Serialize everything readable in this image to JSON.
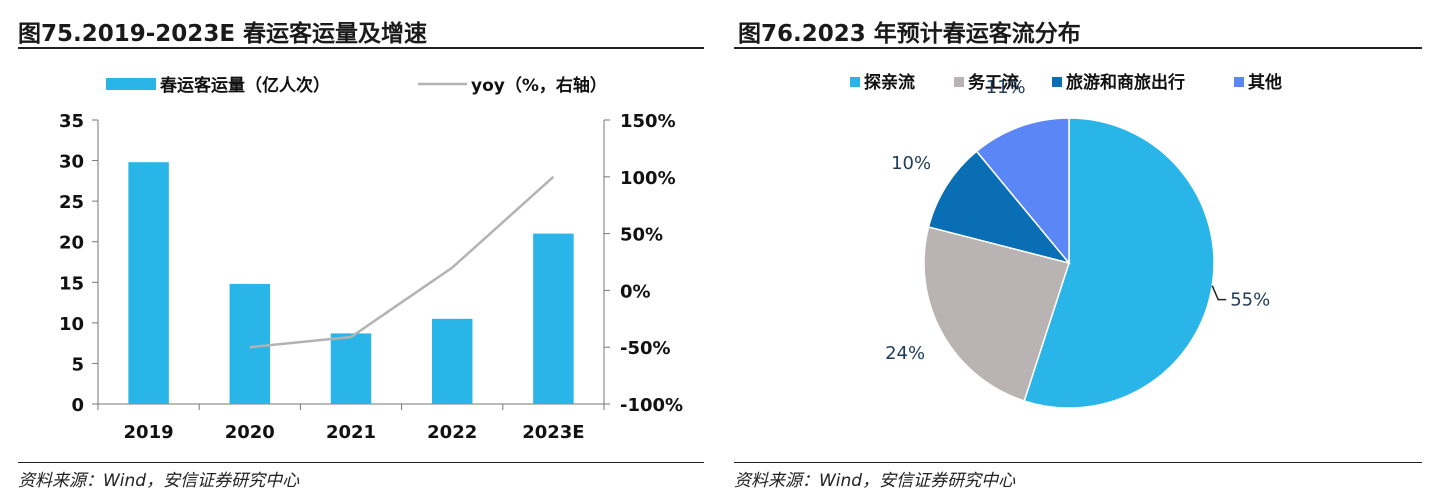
{
  "left": {
    "title": "图75.2019-2023E 春运客运量及增速",
    "source": "资料来源：Wind，安信证券研究中心"
  },
  "right": {
    "title": "图76.2023 年预计春运客流分布",
    "source": "资料来源：Wind，安信证券研究中心"
  },
  "chart_data": [
    {
      "type": "bar",
      "categories": [
        "2019",
        "2020",
        "2021",
        "2022",
        "2023E"
      ],
      "series": [
        {
          "name": "春运客运量（亿人次）",
          "kind": "bar",
          "axis": "left",
          "values": [
            29.8,
            14.8,
            8.7,
            10.5,
            21.0
          ],
          "color": "#29b5e8"
        },
        {
          "name": "yoy（%，右轴）",
          "kind": "line",
          "axis": "right",
          "values": [
            null,
            -50,
            -41,
            20,
            100
          ],
          "color": "#b3b3b3"
        }
      ],
      "ylim_left": [
        0,
        35
      ],
      "yticks_left": [
        "0",
        "5",
        "10",
        "15",
        "20",
        "25",
        "30",
        "35"
      ],
      "ylim_right": [
        -100,
        150
      ],
      "yticks_right": [
        "-100%",
        "-50%",
        "0%",
        "50%",
        "100%",
        "150%"
      ],
      "grid": false,
      "legend": "top"
    },
    {
      "type": "pie",
      "labels": [
        "探亲流",
        "务工流",
        "旅游和商旅出行",
        "其他"
      ],
      "values": [
        55,
        24,
        10,
        11
      ],
      "value_labels": [
        "55%",
        "24%",
        "10%",
        "11%"
      ],
      "colors": [
        "#29b5e8",
        "#bab3b3",
        "#0a6eb4",
        "#5b86f5"
      ],
      "legend": "top"
    }
  ]
}
